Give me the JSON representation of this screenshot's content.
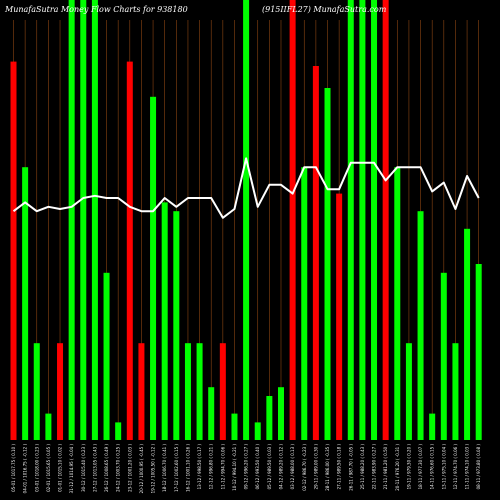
{
  "chart_data": {
    "type": "bar",
    "title_left": "MunafaSutra  Money Flow  Charts for 938180",
    "title_right": "(915IIFL27) MunafaSutra.com",
    "colors": {
      "background": "#000000",
      "up": "#00ff00",
      "down": "#ff0000",
      "line": "#ffffff",
      "grid": "#8b4513"
    },
    "grid": true,
    "ylim": [
      0,
      100
    ],
    "categories": [
      "05-01 / 1017.75 ( 0.10 )",
      "04-01 / 1016.75 ( -0.12 )",
      "03-01 / 1018.00 ( 0.23 )",
      "02-01 / 1015.65 ( 0.05 )",
      "01-01 / 1015.10 ( 0.02 )",
      "31-12 / 1014.95 ( -0.04 )",
      "30-12 / 1015.40 ( 0.23 )",
      "27-12 / 1013.05 ( 0.43 )",
      "26-12 / 1008.65 ( 0.49 )",
      "24-12 / 1003.70 ( 0.25 )",
      "23-12 / 1001.20 ( 0.03 )",
      "20-12 / 1000.95 ( -0.45 )",
      "19-12 / 1005.50 ( -0.12 )",
      "18-12 / 1006.70 ( 0.41 )",
      "17-12 / 1002.60 ( 0.15 )",
      "16-12 / 1001.10 ( 0.26 )",
      "13-12 / 998.50 ( 0.17 )",
      "12-12 / 996.80 ( 0.21 )",
      "11-12 / 994.70 ( 0.06 )",
      "10-12 / 994.10 ( -0.21 )",
      "09-12 / 996.20 ( 0.27 )",
      "06-12 / 993.50 ( 0.40 )",
      "05-12 / 989.50 ( 0.03 )",
      "04-12 / 989.20 ( 0.12 )",
      "03-12 / 988.00 ( 0.13 )",
      "02-12 / 986.70 ( -0.23 )",
      "29-11 / 989.00 ( 0.30 )",
      "28-11 / 986.00 ( -0.35 )",
      "27-11 / 989.50 ( 0.18 )",
      "26-11 / 987.70 ( -0.05 )",
      "25-11 / 988.20 ( 0.43 )",
      "22-11 / 983.90 ( 0.27 )",
      "21-11 / 981.20 ( 0.50 )",
      "20-11 / 976.20 ( -0.31 )",
      "19-11 / 979.30 ( 0.20 )",
      "18-11 / 977.30 ( 0.07 )",
      "14-11 / 976.60 ( 0.15 )",
      "13-11 / 975.10 ( 0.04 )",
      "12-11 / 974.70 ( 0.06 )",
      "11-11 / 974.10 ( 0.03 )",
      "08-11 / 973.80 ( 0.08 )"
    ],
    "volume": [
      86,
      62,
      22,
      6,
      22,
      100,
      100,
      100,
      38,
      4,
      86,
      22,
      78,
      54,
      52,
      22,
      22,
      12,
      22,
      6,
      100,
      4,
      10,
      12,
      100,
      62,
      85,
      80,
      56,
      100,
      100,
      100,
      100,
      62,
      22,
      52,
      6,
      38,
      22,
      48,
      40
    ],
    "direction": [
      "down",
      "up",
      "up",
      "up",
      "down",
      "up",
      "up",
      "up",
      "up",
      "up",
      "down",
      "down",
      "up",
      "up",
      "up",
      "up",
      "up",
      "up",
      "down",
      "up",
      "up",
      "up",
      "up",
      "up",
      "down",
      "up",
      "down",
      "up",
      "down",
      "up",
      "up",
      "up",
      "down",
      "up",
      "up",
      "up",
      "up",
      "up",
      "up",
      "up",
      "up"
    ],
    "price_line": [
      52,
      54,
      52,
      53,
      52.5,
      53,
      55,
      55.5,
      55,
      55,
      53,
      52,
      52,
      55,
      53,
      55,
      55,
      55,
      50.5,
      52.5,
      64,
      53,
      58,
      58,
      56,
      62,
      62,
      57,
      57,
      63,
      63,
      63,
      59,
      62,
      62,
      62,
      56.5,
      58.5,
      52.5,
      60,
      55
    ]
  }
}
